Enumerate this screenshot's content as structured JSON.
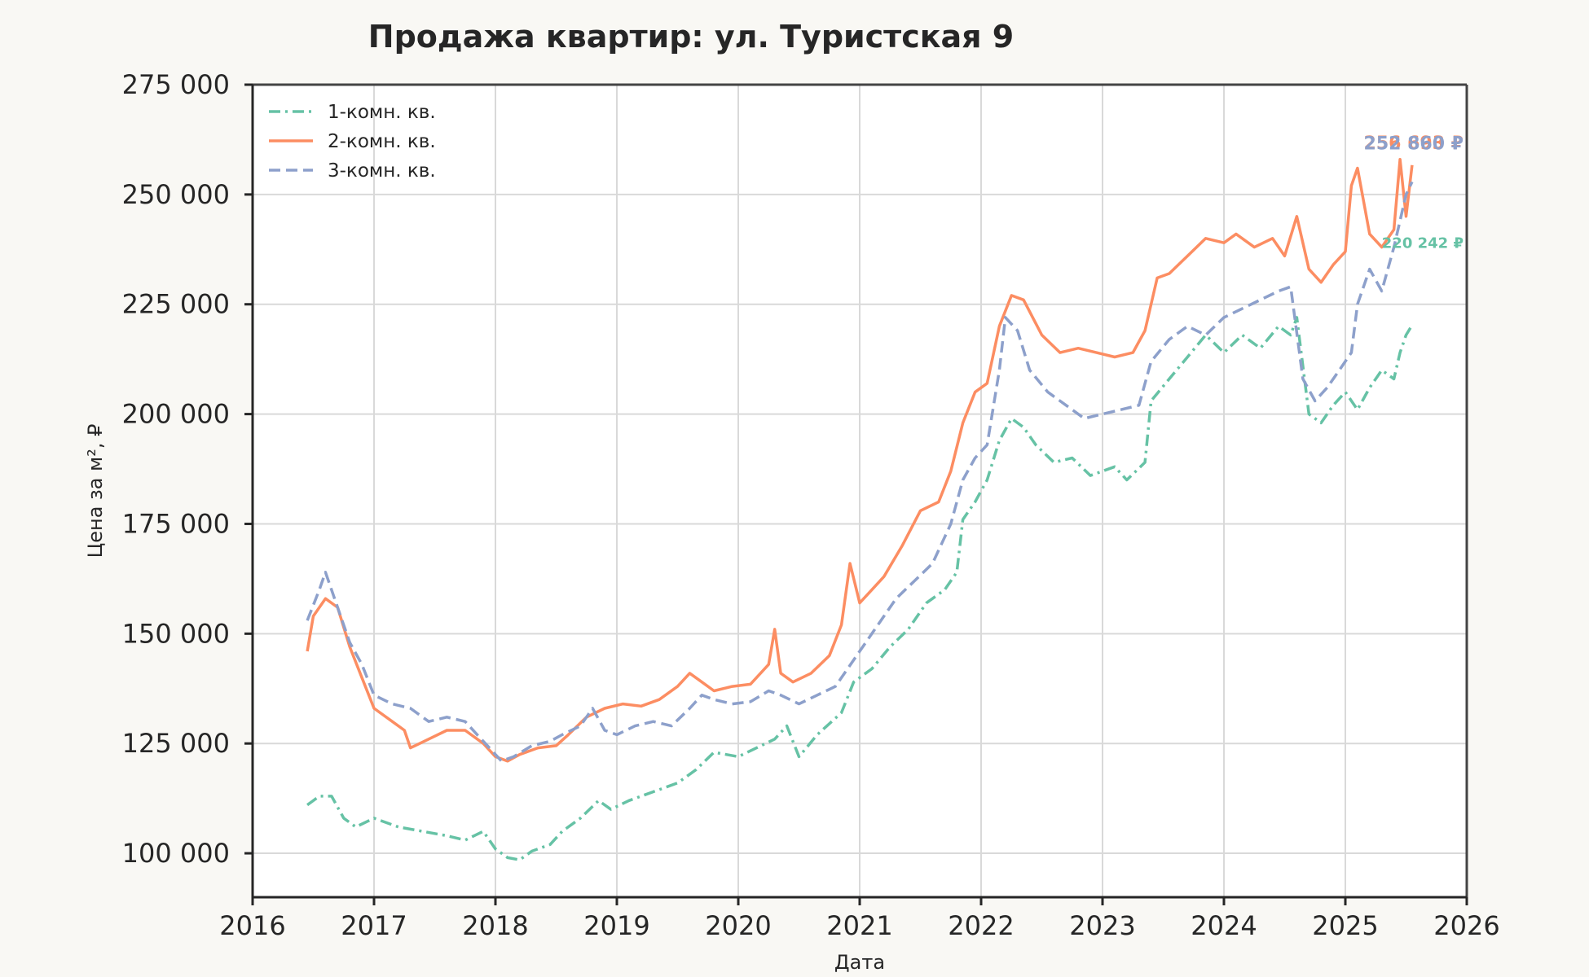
{
  "chart_data": {
    "type": "line",
    "title": "Продажа квартир: ул. Туристская 9",
    "xlabel": "Дата",
    "ylabel": "Цена за м², ₽",
    "xlim": [
      2016,
      2026
    ],
    "ylim": [
      90000,
      275000
    ],
    "x_ticks": [
      2016,
      2017,
      2018,
      2019,
      2020,
      2021,
      2022,
      2023,
      2024,
      2025,
      2026
    ],
    "x_tick_labels": [
      "2016",
      "2017",
      "2018",
      "2019",
      "2020",
      "2021",
      "2022",
      "2023",
      "2024",
      "2025",
      "2026"
    ],
    "y_ticks": [
      100000,
      125000,
      150000,
      175000,
      200000,
      225000,
      250000,
      275000
    ],
    "y_tick_labels": [
      "100 000",
      "125 000",
      "150 000",
      "175 000",
      "200 000",
      "225 000",
      "250 000",
      "275 000"
    ],
    "grid": true,
    "legend_position": "top-left",
    "series": [
      {
        "name": "1-комн. кв.",
        "color": "#66c2a5",
        "dash": "dashdot",
        "end_label": "220 242 ₽",
        "points": [
          [
            2016.45,
            111000
          ],
          [
            2016.55,
            113000
          ],
          [
            2016.65,
            113000
          ],
          [
            2016.75,
            108000
          ],
          [
            2016.85,
            106000
          ],
          [
            2017.0,
            108000
          ],
          [
            2017.2,
            106000
          ],
          [
            2017.4,
            105000
          ],
          [
            2017.6,
            104000
          ],
          [
            2017.75,
            103000
          ],
          [
            2017.9,
            105000
          ],
          [
            2018.0,
            101000
          ],
          [
            2018.1,
            99000
          ],
          [
            2018.2,
            98500
          ],
          [
            2018.3,
            100500
          ],
          [
            2018.45,
            102000
          ],
          [
            2018.55,
            105000
          ],
          [
            2018.7,
            108000
          ],
          [
            2018.85,
            112000
          ],
          [
            2018.95,
            110000
          ],
          [
            2019.1,
            112000
          ],
          [
            2019.3,
            114000
          ],
          [
            2019.5,
            116000
          ],
          [
            2019.65,
            119000
          ],
          [
            2019.8,
            123000
          ],
          [
            2020.0,
            122000
          ],
          [
            2020.15,
            124000
          ],
          [
            2020.3,
            126000
          ],
          [
            2020.4,
            129000
          ],
          [
            2020.5,
            122000
          ],
          [
            2020.65,
            127000
          ],
          [
            2020.85,
            132000
          ],
          [
            2020.95,
            139000
          ],
          [
            2021.1,
            142000
          ],
          [
            2021.25,
            147000
          ],
          [
            2021.4,
            151000
          ],
          [
            2021.55,
            157000
          ],
          [
            2021.7,
            160000
          ],
          [
            2021.8,
            164000
          ],
          [
            2021.85,
            176000
          ],
          [
            2021.95,
            180000
          ],
          [
            2022.05,
            185000
          ],
          [
            2022.15,
            194000
          ],
          [
            2022.25,
            199000
          ],
          [
            2022.35,
            197000
          ],
          [
            2022.45,
            193000
          ],
          [
            2022.6,
            189000
          ],
          [
            2022.75,
            190000
          ],
          [
            2022.9,
            186000
          ],
          [
            2023.0,
            187000
          ],
          [
            2023.1,
            188000
          ],
          [
            2023.2,
            185000
          ],
          [
            2023.35,
            189000
          ],
          [
            2023.4,
            203000
          ],
          [
            2023.55,
            208000
          ],
          [
            2023.7,
            213000
          ],
          [
            2023.85,
            218000
          ],
          [
            2024.0,
            214000
          ],
          [
            2024.15,
            218000
          ],
          [
            2024.3,
            215000
          ],
          [
            2024.45,
            220000
          ],
          [
            2024.55,
            218000
          ],
          [
            2024.6,
            222000
          ],
          [
            2024.7,
            200000
          ],
          [
            2024.8,
            198000
          ],
          [
            2024.9,
            202000
          ],
          [
            2025.0,
            205000
          ],
          [
            2025.1,
            201000
          ],
          [
            2025.2,
            206000
          ],
          [
            2025.3,
            210000
          ],
          [
            2025.4,
            208000
          ],
          [
            2025.45,
            214000
          ],
          [
            2025.5,
            218000
          ],
          [
            2025.55,
            220242
          ]
        ]
      },
      {
        "name": "2-комн. кв.",
        "color": "#fc8d62",
        "dash": "solid",
        "end_label": "256 693 ₽",
        "points": [
          [
            2016.45,
            146000
          ],
          [
            2016.5,
            154000
          ],
          [
            2016.6,
            158000
          ],
          [
            2016.7,
            156000
          ],
          [
            2016.8,
            147000
          ],
          [
            2016.9,
            140000
          ],
          [
            2017.0,
            133000
          ],
          [
            2017.15,
            130000
          ],
          [
            2017.25,
            128000
          ],
          [
            2017.3,
            124000
          ],
          [
            2017.45,
            126000
          ],
          [
            2017.6,
            128000
          ],
          [
            2017.75,
            128000
          ],
          [
            2017.9,
            125000
          ],
          [
            2018.0,
            122000
          ],
          [
            2018.1,
            121000
          ],
          [
            2018.2,
            122500
          ],
          [
            2018.35,
            124000
          ],
          [
            2018.5,
            124500
          ],
          [
            2018.6,
            127000
          ],
          [
            2018.75,
            131000
          ],
          [
            2018.9,
            133000
          ],
          [
            2019.05,
            134000
          ],
          [
            2019.2,
            133500
          ],
          [
            2019.35,
            135000
          ],
          [
            2019.5,
            138000
          ],
          [
            2019.6,
            141000
          ],
          [
            2019.7,
            139000
          ],
          [
            2019.8,
            137000
          ],
          [
            2019.95,
            138000
          ],
          [
            2020.1,
            138500
          ],
          [
            2020.25,
            143000
          ],
          [
            2020.3,
            151000
          ],
          [
            2020.35,
            141000
          ],
          [
            2020.45,
            139000
          ],
          [
            2020.6,
            141000
          ],
          [
            2020.75,
            145000
          ],
          [
            2020.85,
            152000
          ],
          [
            2020.92,
            166000
          ],
          [
            2021.0,
            157000
          ],
          [
            2021.1,
            160000
          ],
          [
            2021.2,
            163000
          ],
          [
            2021.35,
            170000
          ],
          [
            2021.5,
            178000
          ],
          [
            2021.65,
            180000
          ],
          [
            2021.75,
            187000
          ],
          [
            2021.85,
            198000
          ],
          [
            2021.95,
            205000
          ],
          [
            2022.05,
            207000
          ],
          [
            2022.15,
            220000
          ],
          [
            2022.25,
            227000
          ],
          [
            2022.35,
            226000
          ],
          [
            2022.5,
            218000
          ],
          [
            2022.65,
            214000
          ],
          [
            2022.8,
            215000
          ],
          [
            2022.95,
            214000
          ],
          [
            2023.1,
            213000
          ],
          [
            2023.25,
            214000
          ],
          [
            2023.35,
            219000
          ],
          [
            2023.45,
            231000
          ],
          [
            2023.55,
            232000
          ],
          [
            2023.7,
            236000
          ],
          [
            2023.85,
            240000
          ],
          [
            2024.0,
            239000
          ],
          [
            2024.1,
            241000
          ],
          [
            2024.25,
            238000
          ],
          [
            2024.4,
            240000
          ],
          [
            2024.5,
            236000
          ],
          [
            2024.6,
            245000
          ],
          [
            2024.7,
            233000
          ],
          [
            2024.8,
            230000
          ],
          [
            2024.9,
            234000
          ],
          [
            2025.0,
            237000
          ],
          [
            2025.05,
            252000
          ],
          [
            2025.1,
            256000
          ],
          [
            2025.2,
            241000
          ],
          [
            2025.3,
            238000
          ],
          [
            2025.4,
            242000
          ],
          [
            2025.45,
            258000
          ],
          [
            2025.5,
            245000
          ],
          [
            2025.55,
            256693
          ]
        ]
      },
      {
        "name": "3-комн. кв.",
        "color": "#8da0cb",
        "dash": "dashed",
        "end_label": "252 860 ₽",
        "points": [
          [
            2016.45,
            153000
          ],
          [
            2016.55,
            160000
          ],
          [
            2016.6,
            164000
          ],
          [
            2016.7,
            156000
          ],
          [
            2016.8,
            148000
          ],
          [
            2016.9,
            143000
          ],
          [
            2017.0,
            136000
          ],
          [
            2017.15,
            134000
          ],
          [
            2017.3,
            133000
          ],
          [
            2017.45,
            130000
          ],
          [
            2017.6,
            131000
          ],
          [
            2017.75,
            130000
          ],
          [
            2017.85,
            127000
          ],
          [
            2017.95,
            124000
          ],
          [
            2018.05,
            121000
          ],
          [
            2018.15,
            122000
          ],
          [
            2018.3,
            124500
          ],
          [
            2018.45,
            125500
          ],
          [
            2018.55,
            127000
          ],
          [
            2018.7,
            129000
          ],
          [
            2018.8,
            133000
          ],
          [
            2018.9,
            128000
          ],
          [
            2019.0,
            127000
          ],
          [
            2019.15,
            129000
          ],
          [
            2019.3,
            130000
          ],
          [
            2019.45,
            129000
          ],
          [
            2019.6,
            133000
          ],
          [
            2019.7,
            136000
          ],
          [
            2019.8,
            135000
          ],
          [
            2019.95,
            134000
          ],
          [
            2020.1,
            134500
          ],
          [
            2020.25,
            137000
          ],
          [
            2020.35,
            136000
          ],
          [
            2020.5,
            134000
          ],
          [
            2020.65,
            136000
          ],
          [
            2020.8,
            138000
          ],
          [
            2020.9,
            142000
          ],
          [
            2021.0,
            146000
          ],
          [
            2021.15,
            152000
          ],
          [
            2021.3,
            158000
          ],
          [
            2021.45,
            162000
          ],
          [
            2021.6,
            166000
          ],
          [
            2021.75,
            175000
          ],
          [
            2021.85,
            185000
          ],
          [
            2021.95,
            190000
          ],
          [
            2022.05,
            193000
          ],
          [
            2022.15,
            210000
          ],
          [
            2022.2,
            222000
          ],
          [
            2022.3,
            219000
          ],
          [
            2022.4,
            210000
          ],
          [
            2022.55,
            205000
          ],
          [
            2022.7,
            202000
          ],
          [
            2022.85,
            199000
          ],
          [
            2023.0,
            200000
          ],
          [
            2023.15,
            201000
          ],
          [
            2023.3,
            202000
          ],
          [
            2023.4,
            212000
          ],
          [
            2023.55,
            217000
          ],
          [
            2023.7,
            220000
          ],
          [
            2023.85,
            218000
          ],
          [
            2024.0,
            222000
          ],
          [
            2024.15,
            224000
          ],
          [
            2024.3,
            226000
          ],
          [
            2024.45,
            228000
          ],
          [
            2024.55,
            229000
          ],
          [
            2024.65,
            208000
          ],
          [
            2024.75,
            203000
          ],
          [
            2024.85,
            206000
          ],
          [
            2024.95,
            210000
          ],
          [
            2025.05,
            214000
          ],
          [
            2025.1,
            225000
          ],
          [
            2025.2,
            233000
          ],
          [
            2025.3,
            228000
          ],
          [
            2025.4,
            238000
          ],
          [
            2025.45,
            244000
          ],
          [
            2025.5,
            250000
          ],
          [
            2025.55,
            252860
          ]
        ]
      }
    ]
  }
}
